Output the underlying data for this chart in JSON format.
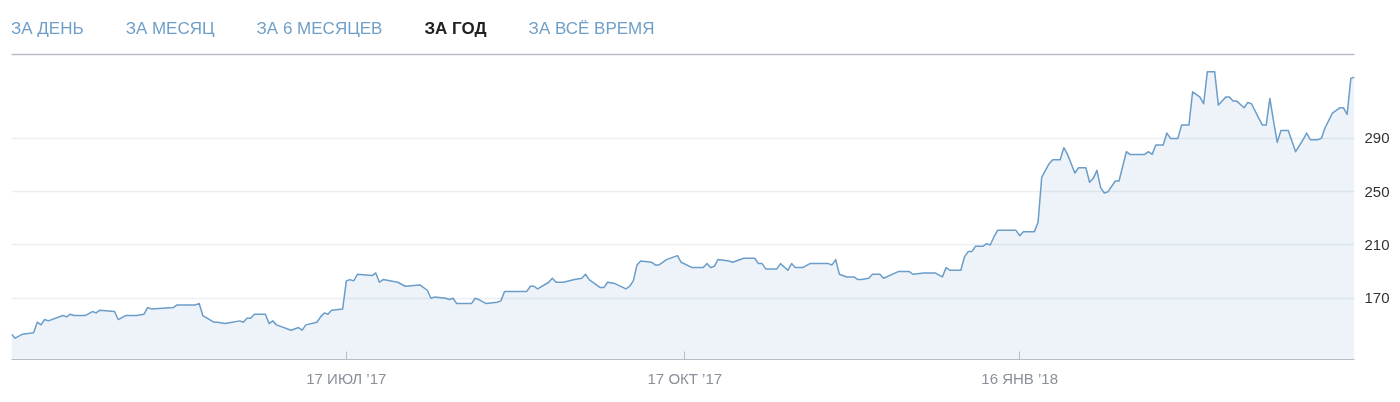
{
  "chart_data": {
    "type": "area",
    "annotations": [
      "ЗА ДЕНЬ",
      "ЗА МЕСЯЦ",
      "ЗА 6 МЕСЯЦЕВ",
      "ЗА ГОД",
      "ЗА ВСЁ ВРЕМЯ"
    ],
    "x": [
      "2017-04-17",
      "2017-04-18",
      "2017-04-20",
      "2017-04-23",
      "2017-04-24",
      "2017-04-25",
      "2017-04-26",
      "2017-04-27",
      "2017-05-01",
      "2017-05-02",
      "2017-05-03",
      "2017-05-04",
      "2017-05-07",
      "2017-05-09",
      "2017-05-10",
      "2017-05-11",
      "2017-05-15",
      "2017-05-16",
      "2017-05-18",
      "2017-05-21",
      "2017-05-23",
      "2017-05-24",
      "2017-05-25",
      "2017-05-31",
      "2017-06-01",
      "2017-06-06",
      "2017-06-07",
      "2017-06-08",
      "2017-06-11",
      "2017-06-12",
      "2017-06-14",
      "2017-06-16",
      "2017-06-18",
      "2017-06-19",
      "2017-06-20",
      "2017-06-21",
      "2017-06-22",
      "2017-06-25",
      "2017-06-26",
      "2017-06-27",
      "2017-06-28",
      "2017-07-02",
      "2017-07-04",
      "2017-07-05",
      "2017-07-06",
      "2017-07-09",
      "2017-07-10",
      "2017-07-11",
      "2017-07-12",
      "2017-07-13",
      "2017-07-16",
      "2017-07-17",
      "2017-07-18",
      "2017-07-19",
      "2017-07-20",
      "2017-07-24",
      "2017-07-25",
      "2017-07-26",
      "2017-07-27",
      "2017-07-31",
      "2017-08-02",
      "2017-08-06",
      "2017-08-08",
      "2017-08-09",
      "2017-08-10",
      "2017-08-13",
      "2017-08-14",
      "2017-08-15",
      "2017-08-16",
      "2017-08-20",
      "2017-08-21",
      "2017-08-22",
      "2017-08-24",
      "2017-08-27",
      "2017-08-28",
      "2017-08-29",
      "2017-09-04",
      "2017-09-05",
      "2017-09-06",
      "2017-09-07",
      "2017-09-10",
      "2017-09-11",
      "2017-09-12",
      "2017-09-14",
      "2017-09-17",
      "2017-09-19",
      "2017-09-20",
      "2017-09-21",
      "2017-09-24",
      "2017-09-25",
      "2017-09-26",
      "2017-09-28",
      "2017-10-01",
      "2017-10-02",
      "2017-10-03",
      "2017-10-04",
      "2017-10-05",
      "2017-10-08",
      "2017-10-09",
      "2017-10-10",
      "2017-10-12",
      "2017-10-15",
      "2017-10-16",
      "2017-10-19",
      "2017-10-22",
      "2017-10-23",
      "2017-10-24",
      "2017-10-25",
      "2017-10-26",
      "2017-10-29",
      "2017-10-30",
      "2017-11-02",
      "2017-11-05",
      "2017-11-06",
      "2017-11-07",
      "2017-11-08",
      "2017-11-11",
      "2017-11-12",
      "2017-11-14",
      "2017-11-15",
      "2017-11-16",
      "2017-11-18",
      "2017-11-20",
      "2017-11-25",
      "2017-11-26",
      "2017-11-27",
      "2017-11-28",
      "2017-11-30",
      "2017-12-02",
      "2017-12-03",
      "2017-12-04",
      "2017-12-06",
      "2017-12-07",
      "2017-12-09",
      "2017-12-10",
      "2017-12-14",
      "2017-12-17",
      "2017-12-18",
      "2017-12-21",
      "2017-12-24",
      "2017-12-26",
      "2017-12-27",
      "2017-12-28",
      "2017-12-31",
      "2018-01-01",
      "2018-01-02",
      "2018-01-03",
      "2018-01-04",
      "2018-01-06",
      "2018-01-07",
      "2018-01-08",
      "2018-01-09",
      "2018-01-10",
      "2018-01-15",
      "2018-01-16",
      "2018-01-17",
      "2018-01-20",
      "2018-01-21",
      "2018-01-22",
      "2018-01-24",
      "2018-01-25",
      "2018-01-27",
      "2018-01-28",
      "2018-01-29",
      "2018-01-31",
      "2018-02-01",
      "2018-02-03",
      "2018-02-04",
      "2018-02-05",
      "2018-02-06",
      "2018-02-07",
      "2018-02-08",
      "2018-02-09",
      "2018-02-11",
      "2018-02-12",
      "2018-02-14",
      "2018-02-15",
      "2018-02-19",
      "2018-02-20",
      "2018-02-21",
      "2018-02-22",
      "2018-02-24",
      "2018-02-25",
      "2018-02-26",
      "2018-02-27",
      "2018-02-28",
      "2018-03-01",
      "2018-03-03",
      "2018-03-04",
      "2018-03-06",
      "2018-03-07",
      "2018-03-08",
      "2018-03-10",
      "2018-03-11",
      "2018-03-13",
      "2018-03-14",
      "2018-03-15",
      "2018-03-16",
      "2018-03-18",
      "2018-03-19",
      "2018-03-20",
      "2018-03-22",
      "2018-03-23",
      "2018-03-24",
      "2018-03-25",
      "2018-03-26",
      "2018-03-27",
      "2018-03-28",
      "2018-03-30",
      "2018-04-01",
      "2018-04-03",
      "2018-04-04",
      "2018-04-05",
      "2018-04-07",
      "2018-04-08",
      "2018-04-09",
      "2018-04-11",
      "2018-04-13",
      "2018-04-14",
      "2018-04-15",
      "2018-04-16",
      "2018-04-17"
    ],
    "series": [
      {
        "color": "#6b9dc9",
        "values": [
          143,
          140,
          143,
          144,
          152,
          150,
          154,
          153,
          157,
          156,
          158,
          157,
          157,
          160,
          159,
          161,
          160,
          154,
          157,
          157,
          158,
          163,
          162,
          163,
          165,
          165,
          166,
          157,
          152,
          152,
          151,
          152,
          153,
          152,
          155,
          155,
          158,
          158,
          151,
          153,
          150,
          146,
          148,
          146,
          150,
          152,
          156,
          159,
          158,
          161,
          162,
          183,
          184,
          183,
          188,
          187,
          189,
          182,
          184,
          182,
          179,
          180,
          176,
          170,
          171,
          170,
          169,
          170,
          166,
          166,
          170,
          169,
          166,
          167,
          168,
          175,
          175,
          179,
          179,
          177,
          182,
          185,
          182,
          182,
          184,
          185,
          188,
          184,
          178,
          178,
          182,
          181,
          177,
          179,
          183,
          195,
          198,
          197,
          195,
          195,
          199,
          202,
          197,
          193,
          193,
          196,
          193,
          194,
          199,
          198,
          197,
          200,
          200,
          196,
          196,
          192,
          192,
          196,
          191,
          196,
          193,
          193,
          196,
          196,
          195,
          199,
          188,
          186,
          186,
          184,
          184,
          185,
          188,
          188,
          185,
          190,
          190,
          188,
          189,
          189,
          186,
          193,
          191,
          191,
          201,
          205,
          205,
          209,
          209,
          211,
          210,
          216,
          221,
          221,
          217,
          220,
          220,
          227,
          261,
          271,
          274,
          274,
          283,
          278,
          264,
          268,
          268,
          257,
          260,
          266,
          253,
          249,
          250,
          258,
          258,
          280,
          278,
          278,
          280,
          278,
          285,
          285,
          294,
          290,
          290,
          290,
          300,
          300,
          325,
          321,
          316,
          340,
          340,
          315,
          321,
          321,
          318,
          318,
          313,
          317,
          316,
          305,
          300,
          300,
          320,
          303,
          287,
          296,
          296,
          280,
          289,
          294,
          289,
          289,
          290,
          298,
          309,
          313,
          313,
          308,
          335,
          336
        ]
      }
    ],
    "xlim": [
      "2017-04-17",
      "2018-04-17"
    ],
    "xticks": [
      {
        "value": "2017-07-17",
        "label": "17 ИЮЛ ’17"
      },
      {
        "value": "2017-10-17",
        "label": "17 ОКТ ’17"
      },
      {
        "value": "2018-01-16",
        "label": "16 ЯНВ ’18"
      }
    ],
    "ylim": [
      124,
      353
    ],
    "yticks": [
      170,
      210,
      250,
      290
    ],
    "grid": "y"
  }
}
